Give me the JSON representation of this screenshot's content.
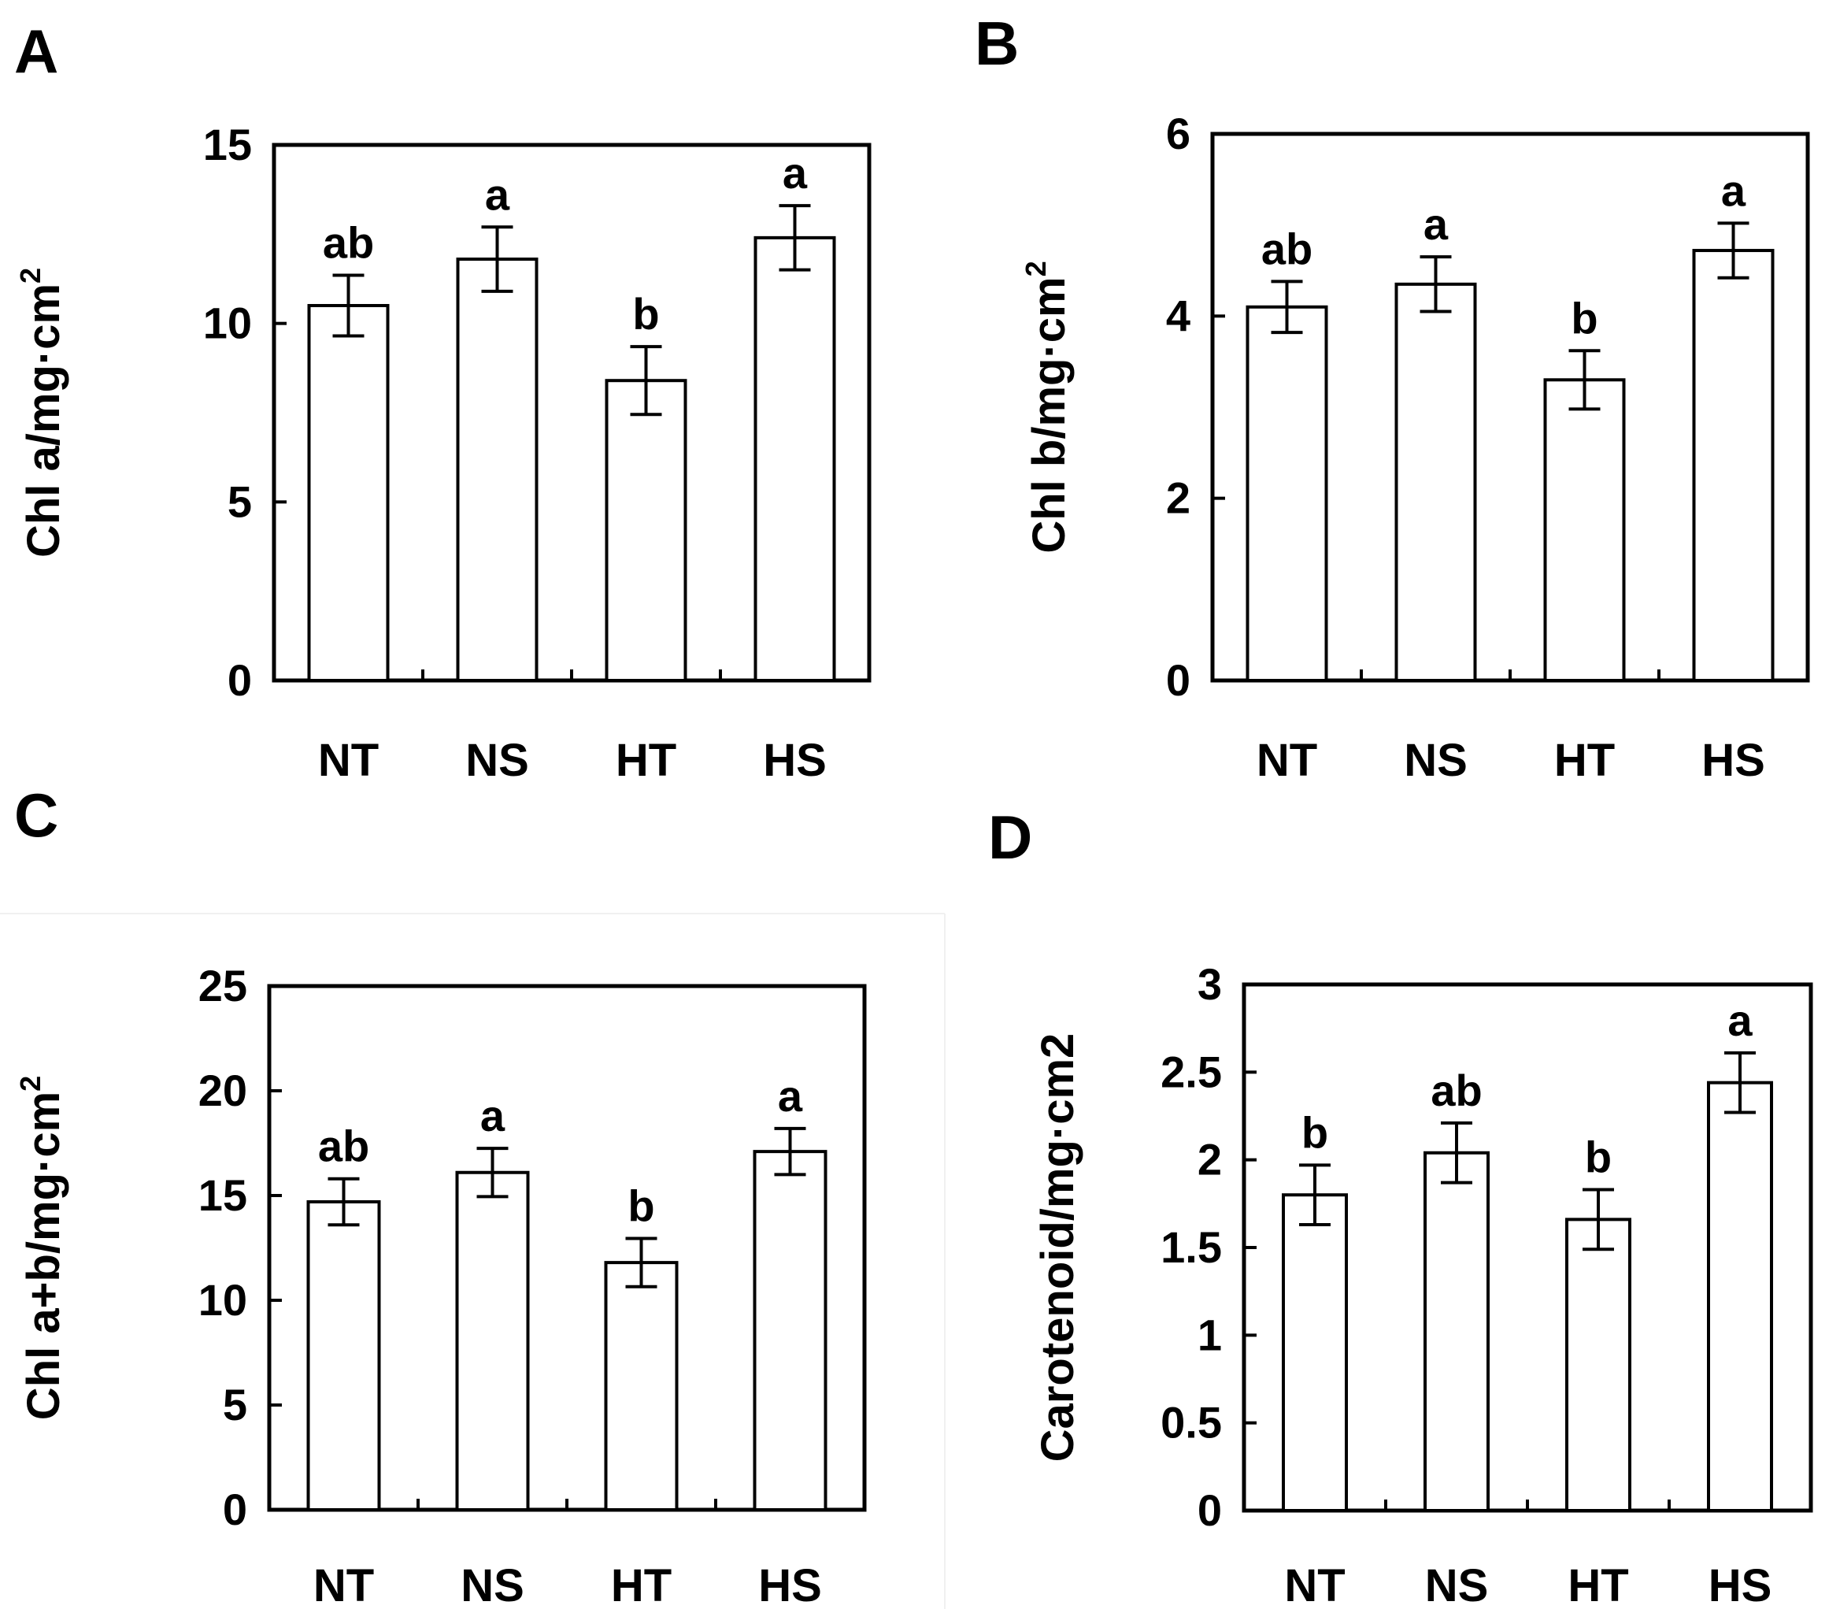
{
  "chart_data": [
    {
      "panel": "A",
      "type": "bar",
      "categories": [
        "NT",
        "NS",
        "HT",
        "HS"
      ],
      "values": [
        10.5,
        11.8,
        8.4,
        12.4
      ],
      "errors": [
        0.85,
        0.9,
        0.95,
        0.9
      ],
      "significance": [
        "ab",
        "a",
        "b",
        "a"
      ],
      "ylabel": "Chl a/mg·cm",
      "ylabel_sup": "2",
      "ylim": [
        0,
        15
      ],
      "yticks": [
        "0",
        "5",
        "10",
        "15"
      ]
    },
    {
      "panel": "B",
      "type": "bar",
      "categories": [
        "NT",
        "NS",
        "HT",
        "HS"
      ],
      "values": [
        4.1,
        4.35,
        3.3,
        4.72
      ],
      "errors": [
        0.28,
        0.3,
        0.32,
        0.3
      ],
      "significance": [
        "ab",
        "a",
        "b",
        "a"
      ],
      "ylabel": "Chl b/mg·cm",
      "ylabel_sup": "2",
      "ylim": [
        0,
        6
      ],
      "yticks": [
        "0",
        "2",
        "4",
        "6"
      ]
    },
    {
      "panel": "C",
      "type": "bar",
      "categories": [
        "NT",
        "NS",
        "HT",
        "HS"
      ],
      "values": [
        14.7,
        16.1,
        11.8,
        17.1
      ],
      "errors": [
        1.1,
        1.15,
        1.15,
        1.1
      ],
      "significance": [
        "ab",
        "a",
        "b",
        "a"
      ],
      "ylabel": "Chl a+b/mg·cm",
      "ylabel_sup": "2",
      "ylim": [
        0,
        25
      ],
      "yticks": [
        "0",
        "5",
        "10",
        "15",
        "20",
        "25"
      ]
    },
    {
      "panel": "D",
      "type": "bar",
      "categories": [
        "NT",
        "NS",
        "HT",
        "HS"
      ],
      "values": [
        1.8,
        2.04,
        1.66,
        2.44
      ],
      "errors": [
        0.17,
        0.17,
        0.17,
        0.17
      ],
      "significance": [
        "b",
        "ab",
        "b",
        "a"
      ],
      "ylabel": "Carotenoid/mg·cm2",
      "ylabel_sup": "",
      "ylim": [
        0,
        3
      ],
      "yticks": [
        "0",
        "0.5",
        "1",
        "1.5",
        "2",
        "2.5",
        "3"
      ]
    }
  ]
}
